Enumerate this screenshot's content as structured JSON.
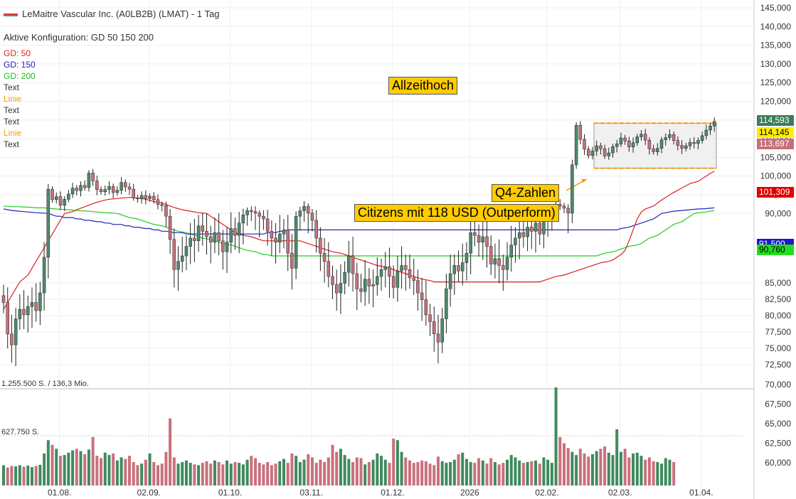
{
  "header": {
    "title": "LeMaitre Vascular Inc. (A0LB2B) (LMAT) - 1 Tag",
    "config": "Aktive Konfiguration: GD 50 150 200"
  },
  "legend": [
    {
      "label": "GD: 50",
      "color": "#e02020"
    },
    {
      "label": "GD: 150",
      "color": "#2020c0"
    },
    {
      "label": "GD: 200",
      "color": "#20c020"
    },
    {
      "label": "Text",
      "color": "#333333"
    },
    {
      "label": "Linie",
      "color": "#ff9900"
    },
    {
      "label": "Text",
      "color": "#333333"
    },
    {
      "label": "Text",
      "color": "#333333"
    },
    {
      "label": "Linie",
      "color": "#ff9900"
    },
    {
      "label": "Text",
      "color": "#333333"
    }
  ],
  "annotations": {
    "ath": "Allzeithoch",
    "q4": "Q4-Zahlen",
    "citizens": "Citizens mit 118 USD (Outperform)"
  },
  "price_tags": [
    {
      "text": "114,593",
      "bg": "#3a7d5a",
      "fg": "#ffffff"
    },
    {
      "text": "114,145",
      "bg": "#ffee00",
      "fg": "#000000"
    },
    {
      "text": "113,697",
      "bg": "#c76e78",
      "fg": "#ffffff"
    },
    {
      "text": "101,309",
      "bg": "#e00000",
      "fg": "#ffffff"
    },
    {
      "text": "91,500",
      "bg": "#1a1acc",
      "fg": "#ffffff"
    },
    {
      "text": "90,760",
      "bg": "#22dd22",
      "fg": "#000000"
    }
  ],
  "volume_labels": {
    "top": "1.255.500 S. / 136,3 Mio.",
    "mid": "627.750 S."
  },
  "chart_data": {
    "type": "candlestick",
    "y_ticks": [
      "145,000",
      "140,000",
      "135,000",
      "130,000",
      "125,000",
      "120,000",
      "115,000",
      "110,000",
      "105,000",
      "100,000",
      "95,000",
      "90,000",
      "85,000",
      "82,500",
      "80,000",
      "77,500",
      "75,000",
      "72,500",
      "70,000",
      "67,500",
      "65,000",
      "62,500",
      "60,000"
    ],
    "x_ticks": [
      "01.08.",
      "02.09.",
      "01.10.",
      "03.11.",
      "01.12.",
      "2026",
      "02.02.",
      "02.03.",
      "01.04."
    ],
    "x_tick_index": [
      8,
      30,
      50,
      70,
      90,
      109,
      128,
      146,
      166
    ],
    "price_close": [
      83.5,
      81.2,
      80.4,
      82.3,
      83.0,
      82.6,
      83.2,
      83.5,
      82.9,
      84.2,
      86.8,
      96.5,
      93.7,
      94.5,
      92.2,
      93.8,
      95.2,
      96.8,
      96.1,
      97.5,
      96.9,
      100.8,
      98.7,
      96.4,
      95.8,
      96.4,
      97.2,
      95.6,
      96.2,
      98.3,
      97.1,
      96.5,
      94.2,
      93.9,
      94.8,
      94.0,
      94.6,
      93.7,
      92.4,
      92.1,
      89.8,
      88.1,
      85.9,
      86.5,
      86.9,
      87.6,
      88.2,
      88.0,
      89.1,
      88.7,
      88.3,
      87.9,
      88.6,
      88.0,
      87.2,
      87.9,
      88.9,
      88.4,
      89.3,
      89.9,
      90.8,
      90.5,
      90.1,
      89.8,
      89.6,
      88.7,
      88.2,
      87.9,
      88.5,
      88.8,
      87.1,
      86.0,
      89.8,
      90.7,
      91.9,
      90.1,
      89.5,
      88.2,
      87.1,
      86.5,
      85.4,
      84.8,
      84.2,
      84.9,
      85.7,
      86.9,
      85.6,
      84.5,
      84.3,
      85.2,
      84.7,
      84.8,
      85.4,
      85.9,
      86.1,
      85.4,
      84.6,
      85.8,
      86.2,
      85.9,
      85.3,
      85.1,
      84.2,
      83.7,
      82.6,
      82.1,
      81.2,
      80.6,
      82.3,
      84.5,
      85.6,
      86.2,
      85.8,
      86.4,
      87.1,
      88.6,
      88.4,
      87.9,
      88.3,
      87.6,
      86.3,
      86.7,
      86.2,
      85.9,
      86.8,
      87.7,
      88.2,
      88.6,
      88.3,
      89.0,
      88.7,
      89.3,
      88.5,
      89.6,
      90.3,
      91.2,
      92.4,
      92.0,
      91.4,
      90.1,
      103.0,
      113.6,
      109.8,
      107.2,
      105.5,
      106.7,
      108.1,
      107.3,
      105.4,
      106.2,
      107.9,
      108.6,
      110.2,
      109.4,
      107.8,
      108.9,
      110.5,
      111.2,
      109.6,
      107.3,
      106.5,
      107.4,
      109.7,
      110.3,
      111.1,
      109.5,
      108.2,
      107.4,
      108.1,
      109.0,
      108.7,
      109.5,
      110.8,
      112.3,
      113.4,
      114.6
    ],
    "sma50": [
      83.0,
      83.5,
      84.0,
      84.5,
      85.0,
      85.5,
      86.0,
      86.5,
      87.0,
      87.5,
      88.0,
      88.5,
      89.0,
      89.5,
      90.0,
      90.5,
      91.0,
      91.4,
      91.8,
      92.2,
      92.6,
      93.0,
      93.3,
      93.6,
      93.8,
      94.0,
      94.1,
      94.2,
      94.3,
      94.2,
      94.1,
      94.0,
      93.8,
      93.5,
      93.2,
      92.8,
      92.4,
      92.0,
      91.6,
      91.3,
      91.0,
      90.8,
      90.6,
      90.4,
      90.2,
      90.0,
      89.8,
      89.6,
      89.4,
      89.2,
      89.0,
      88.8,
      88.6,
      88.5,
      88.4,
      88.3,
      88.2,
      88.1,
      88.0,
      88.0,
      88.0,
      88.0,
      88.0,
      88.0,
      88.0,
      88.0,
      88.0,
      87.9,
      87.8,
      87.7,
      87.6,
      87.5,
      87.4,
      87.3,
      87.2,
      87.1,
      87.0,
      86.9,
      86.8,
      86.7,
      86.6,
      86.5,
      86.4,
      86.3,
      86.2,
      86.1,
      86.0,
      85.9,
      85.8,
      85.7,
      85.6,
      85.5,
      85.4,
      85.3,
      85.2,
      85.1,
      85.0,
      85.0,
      85.0,
      85.0,
      85.0,
      85.0,
      85.0,
      85.0,
      85.0,
      85.0,
      85.0,
      85.0,
      85.0,
      85.0,
      85.0,
      85.0,
      85.0,
      85.0,
      85.0,
      85.0,
      85.0,
      85.0,
      85.0,
      85.0,
      85.0,
      85.1,
      85.2,
      85.3,
      85.4,
      85.5,
      85.6,
      85.7,
      85.8,
      85.9,
      86.0,
      86.1,
      86.2,
      86.3,
      86.4,
      86.5,
      86.6,
      86.8,
      87.0,
      87.3,
      88.0,
      88.8,
      89.6,
      90.4,
      91.2,
      92.0,
      92.8,
      93.6,
      94.3,
      95.0,
      95.6,
      96.2,
      96.8,
      97.4,
      98.0,
      98.6,
      99.3,
      100.0,
      100.7,
      101.3
    ],
    "sma150": [
      91.2,
      91.0,
      90.8,
      90.6,
      90.5,
      90.4,
      90.3,
      90.2,
      90.1,
      90.0,
      89.9,
      89.8,
      89.8,
      89.7,
      89.7,
      89.6,
      89.6,
      89.5,
      89.5,
      89.4,
      89.4,
      89.3,
      89.3,
      89.2,
      89.2,
      89.1,
      89.1,
      89.0,
      89.0,
      88.9,
      88.9,
      88.8,
      88.8,
      88.7,
      88.7,
      88.6,
      88.6,
      88.6,
      88.5,
      88.5,
      88.5,
      88.5,
      88.5,
      88.5,
      88.5,
      88.5,
      88.5,
      88.5,
      88.5,
      88.5,
      88.5,
      88.5,
      88.5,
      88.5,
      88.5,
      88.6,
      88.6,
      88.7,
      88.7,
      88.8,
      88.8,
      88.8,
      88.8,
      88.8,
      88.8,
      88.8,
      88.8,
      88.8,
      88.8,
      88.8,
      88.8,
      88.8,
      88.8,
      88.8,
      88.8,
      88.8,
      88.8,
      88.8,
      88.8,
      88.8,
      88.8,
      88.8,
      88.8,
      88.8,
      88.8,
      88.8,
      88.8,
      88.8,
      88.8,
      88.8,
      88.8,
      88.8,
      88.8,
      88.8,
      88.8,
      88.8,
      88.8,
      88.8,
      88.8,
      88.8,
      88.8,
      88.8,
      88.8,
      88.8,
      88.8,
      88.8,
      88.8,
      88.8,
      88.8,
      88.8,
      88.8,
      88.8,
      88.8,
      88.8,
      88.8,
      88.8,
      88.8,
      88.8,
      88.8,
      88.8,
      88.8,
      88.8,
      88.8,
      88.8,
      88.8,
      88.8,
      88.8,
      88.8,
      88.9,
      89.0,
      89.1,
      89.2,
      89.3,
      89.4,
      89.6,
      89.8,
      90.0,
      90.2,
      90.4,
      90.6,
      90.8,
      90.9,
      91.0,
      91.1,
      91.2,
      91.3,
      91.4,
      91.5
    ],
    "sma200": [
      92.0,
      91.9,
      91.8,
      91.8,
      91.7,
      91.7,
      91.6,
      91.5,
      91.5,
      91.4,
      91.3,
      91.2,
      91.1,
      91.0,
      90.9,
      90.8,
      90.7,
      90.6,
      90.5,
      90.4,
      90.3,
      90.2,
      90.1,
      90.0,
      89.9,
      89.8,
      89.7,
      89.6,
      89.5,
      89.4,
      89.3,
      89.2,
      89.1,
      89.0,
      88.9,
      88.8,
      88.7,
      88.6,
      88.5,
      88.4,
      88.3,
      88.2,
      88.1,
      88.0,
      87.9,
      87.8,
      87.7,
      87.6,
      87.5,
      87.4,
      87.3,
      87.2,
      87.1,
      87.0,
      87.0,
      86.9,
      86.9,
      86.9,
      86.9,
      86.9,
      86.9,
      86.9,
      86.9,
      86.9,
      86.9,
      86.9,
      86.9,
      86.9,
      86.9,
      86.9,
      86.9,
      86.9,
      86.9,
      86.9,
      86.9,
      86.9,
      86.9,
      86.9,
      86.9,
      86.9,
      86.9,
      86.9,
      86.9,
      86.9,
      86.9,
      86.9,
      86.9,
      86.9,
      86.9,
      86.9,
      86.9,
      86.9,
      86.9,
      86.9,
      86.9,
      86.9,
      86.9,
      86.9,
      86.9,
      86.9,
      86.9,
      86.9,
      86.9,
      86.9,
      86.9,
      86.9,
      86.9,
      86.9,
      86.9,
      86.9,
      86.9,
      86.9,
      86.9,
      86.9,
      86.9,
      86.9,
      86.9,
      86.9,
      86.9,
      86.9,
      86.9,
      86.9,
      87.0,
      87.1,
      87.2,
      87.3,
      87.4,
      87.5,
      87.6,
      87.7,
      87.8,
      88.0,
      88.2,
      88.4,
      88.6,
      88.8,
      89.0,
      89.2,
      89.4,
      89.6,
      89.8,
      90.0,
      90.2,
      90.4,
      90.6,
      90.76
    ],
    "volume": [
      260,
      230,
      250,
      245,
      260,
      240,
      255,
      235,
      250,
      265,
      410,
      580,
      520,
      470,
      380,
      390,
      420,
      450,
      470,
      440,
      400,
      460,
      620,
      380,
      350,
      420,
      390,
      410,
      320,
      360,
      340,
      380,
      300,
      260,
      280,
      330,
      410,
      300,
      260,
      280,
      430,
      860,
      360,
      280,
      300,
      320,
      290,
      270,
      260,
      290,
      310,
      280,
      320,
      300,
      270,
      320,
      280,
      300,
      290,
      270,
      330,
      380,
      350,
      290,
      270,
      300,
      260,
      280,
      310,
      340,
      290,
      410,
      380,
      300,
      330,
      400,
      360,
      290,
      330,
      300,
      360,
      520,
      430,
      470,
      390,
      340,
      300,
      360,
      350,
      270,
      300,
      330,
      410,
      380,
      330,
      290,
      600,
      580,
      430,
      360,
      320,
      290,
      300,
      320,
      310,
      280,
      260,
      370,
      310,
      290,
      300,
      330,
      400,
      420,
      340,
      300,
      290,
      350,
      320,
      280,
      350,
      300,
      270,
      290,
      330,
      390,
      360,
      320,
      290,
      300,
      310,
      320,
      280,
      360,
      330,
      290,
      1255,
      620,
      540,
      480,
      430,
      390,
      470,
      410,
      370,
      400,
      440,
      470,
      500,
      420,
      390,
      720,
      430,
      470,
      360,
      410,
      420,
      380,
      330,
      360,
      310,
      300,
      280,
      350,
      330,
      300
    ],
    "range_box": {
      "top": 114.145,
      "bottom": 102.1
    },
    "ylim_price": [
      68,
      146
    ]
  }
}
